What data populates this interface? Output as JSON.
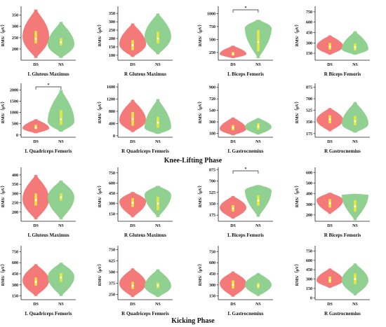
{
  "phases": [
    {
      "title": "Knee-Lifting Phase"
    },
    {
      "title": "Kicking Phase"
    }
  ],
  "colors": {
    "ds": "#f47a7a",
    "ns": "#90d090",
    "box": "#e8e840",
    "median": "#fffff0",
    "axis": "#222222"
  },
  "chart_data": [
    {
      "type": "violin",
      "title": "L Gluteus Maximus",
      "ylabel": "RMS/（μV）",
      "categories": [
        "DS",
        "NS"
      ],
      "yticks": [
        200,
        250,
        300,
        350
      ],
      "ylim": [
        150,
        380
      ],
      "significance": "",
      "series": [
        {
          "name": "DS",
          "median": 245,
          "q1": 225,
          "q3": 280,
          "min": 160,
          "max": 375,
          "widest_at": 255
        },
        {
          "name": "NS",
          "median": 230,
          "q1": 215,
          "q3": 248,
          "min": 160,
          "max": 320,
          "widest_at": 220
        }
      ]
    },
    {
      "type": "violin",
      "title": "R Gluteus Maximus",
      "ylabel": "RMS/（μV）",
      "categories": [
        "DS",
        "NS"
      ],
      "yticks": [
        100,
        150,
        200,
        250,
        300,
        350
      ],
      "ylim": [
        70,
        380
      ],
      "significance": "",
      "series": [
        {
          "name": "DS",
          "median": 160,
          "q1": 130,
          "q3": 190,
          "min": 90,
          "max": 290,
          "widest_at": 165
        },
        {
          "name": "NS",
          "median": 200,
          "q1": 170,
          "q3": 240,
          "min": 105,
          "max": 350,
          "widest_at": 210
        }
      ]
    },
    {
      "type": "violin",
      "title": "L Biceps Femoris",
      "ylabel": "RMS/（μV）",
      "categories": [
        "DS",
        "NS"
      ],
      "yticks": [
        250,
        500,
        750,
        1000
      ],
      "ylim": [
        100,
        1100
      ],
      "significance": "*",
      "series": [
        {
          "name": "DS",
          "median": 220,
          "q1": 190,
          "q3": 260,
          "min": 140,
          "max": 380,
          "widest_at": 220
        },
        {
          "name": "NS",
          "median": 450,
          "q1": 270,
          "q3": 680,
          "min": 140,
          "max": 880,
          "widest_at": 720
        }
      ]
    },
    {
      "type": "violin",
      "title": "R Biceps Femoris",
      "ylabel": "RMS/（μV）",
      "categories": [
        "DS",
        "NS"
      ],
      "yticks": [
        150,
        300,
        450,
        600,
        750
      ],
      "ylim": [
        50,
        800
      ],
      "significance": "",
      "series": [
        {
          "name": "DS",
          "median": 245,
          "q1": 205,
          "q3": 300,
          "min": 130,
          "max": 410,
          "widest_at": 250
        },
        {
          "name": "NS",
          "median": 240,
          "q1": 190,
          "q3": 290,
          "min": 130,
          "max": 470,
          "widest_at": 210
        }
      ]
    },
    {
      "type": "violin",
      "title": "L Quadriceps Femoris",
      "ylabel": "RMS/（μV）",
      "categories": [
        "DS",
        "NS"
      ],
      "yticks": [
        0,
        500,
        1000,
        1500,
        2000
      ],
      "ylim": [
        -100,
        2200
      ],
      "significance": "*",
      "series": [
        {
          "name": "DS",
          "median": 330,
          "q1": 260,
          "q3": 450,
          "min": 80,
          "max": 700,
          "widest_at": 300
        },
        {
          "name": "NS",
          "median": 700,
          "q1": 450,
          "q3": 1100,
          "min": 150,
          "max": 2000,
          "widest_at": 600
        }
      ]
    },
    {
      "type": "violin",
      "title": "R Quadriceps Femoris",
      "ylabel": "RMS/（μV）",
      "categories": [
        "DS",
        "NS"
      ],
      "yticks": [
        0,
        400,
        800,
        1200,
        1600
      ],
      "ylim": [
        -50,
        1650
      ],
      "significance": "",
      "series": [
        {
          "name": "DS",
          "median": 550,
          "q1": 330,
          "q3": 780,
          "min": 120,
          "max": 1180,
          "widest_at": 500
        },
        {
          "name": "NS",
          "median": 430,
          "q1": 260,
          "q3": 620,
          "min": 60,
          "max": 1200,
          "widest_at": 260
        }
      ]
    },
    {
      "type": "violin",
      "title": "L Gastrocnemius",
      "ylabel": "RMS/（μV）",
      "categories": [
        "DS",
        "NS"
      ],
      "yticks": [
        180,
        360,
        540,
        720,
        900
      ],
      "ylim": [
        120,
        930
      ],
      "significance": "",
      "series": [
        {
          "name": "DS",
          "median": 270,
          "q1": 230,
          "q3": 310,
          "min": 150,
          "max": 430,
          "widest_at": 250
        },
        {
          "name": "NS",
          "median": 290,
          "q1": 240,
          "q3": 340,
          "min": 160,
          "max": 420,
          "widest_at": 280
        }
      ]
    },
    {
      "type": "violin",
      "title": "R Gastrocnemius",
      "ylabel": "RMS/（μV）",
      "categories": [
        "DS",
        "NS"
      ],
      "yticks": [
        175,
        350,
        525,
        700,
        875
      ],
      "ylim": [
        120,
        900
      ],
      "significance": "",
      "series": [
        {
          "name": "DS",
          "median": 390,
          "q1": 330,
          "q3": 450,
          "min": 210,
          "max": 560,
          "widest_at": 380
        },
        {
          "name": "NS",
          "median": 360,
          "q1": 300,
          "q3": 440,
          "min": 190,
          "max": 650,
          "widest_at": 320
        }
      ]
    },
    {
      "type": "violin",
      "title": "L Gluteus Maximus",
      "ylabel": "RMS/（μV）",
      "categories": [
        "DS",
        "NS"
      ],
      "yticks": [
        200,
        250,
        300,
        350,
        400
      ],
      "ylim": [
        150,
        430
      ],
      "significance": "",
      "series": [
        {
          "name": "DS",
          "median": 265,
          "q1": 235,
          "q3": 300,
          "min": 160,
          "max": 400,
          "widest_at": 270
        },
        {
          "name": "NS",
          "median": 280,
          "q1": 262,
          "q3": 300,
          "min": 160,
          "max": 370,
          "widest_at": 280
        }
      ]
    },
    {
      "type": "violin",
      "title": "R Gluteus Maximus",
      "ylabel": "RMS/（μV）",
      "categories": [
        "DS",
        "NS"
      ],
      "yticks": [
        150,
        300,
        450,
        600,
        750
      ],
      "ylim": [
        40,
        800
      ],
      "significance": "",
      "series": [
        {
          "name": "DS",
          "median": 310,
          "q1": 250,
          "q3": 380,
          "min": 100,
          "max": 470,
          "widest_at": 330
        },
        {
          "name": "NS",
          "median": 300,
          "q1": 200,
          "q3": 400,
          "min": 100,
          "max": 560,
          "widest_at": 430
        }
      ]
    },
    {
      "type": "violin",
      "title": "L Biceps Femoris",
      "ylabel": "RMS/（μV）",
      "categories": [
        "DS",
        "NS"
      ],
      "yticks": [
        175,
        350,
        525,
        700,
        875
      ],
      "ylim": [
        80,
        880
      ],
      "significance": "*",
      "series": [
        {
          "name": "DS",
          "median": 280,
          "q1": 230,
          "q3": 330,
          "min": 120,
          "max": 470,
          "widest_at": 290
        },
        {
          "name": "NS",
          "median": 400,
          "q1": 320,
          "q3": 480,
          "min": 150,
          "max": 640,
          "widest_at": 560
        }
      ]
    },
    {
      "type": "violin",
      "title": "R Biceps Femoris",
      "ylabel": "RMS/（μV）",
      "categories": [
        "DS",
        "NS"
      ],
      "yticks": [
        200,
        300,
        400,
        500,
        600
      ],
      "ylim": [
        140,
        630
      ],
      "significance": "",
      "series": [
        {
          "name": "DS",
          "median": 310,
          "q1": 270,
          "q3": 350,
          "min": 210,
          "max": 410,
          "widest_at": 340
        },
        {
          "name": "NS",
          "median": 280,
          "q1": 230,
          "q3": 340,
          "min": 150,
          "max": 400,
          "widest_at": 390
        }
      ]
    },
    {
      "type": "violin",
      "title": "L Quadriceps Femoris",
      "ylabel": "RMS/（μV）",
      "categories": [
        "DS",
        "NS"
      ],
      "yticks": [
        150,
        300,
        450,
        600,
        750
      ],
      "ylim": [
        100,
        800
      ],
      "significance": "",
      "series": [
        {
          "name": "DS",
          "median": 340,
          "q1": 290,
          "q3": 400,
          "min": 150,
          "max": 580,
          "widest_at": 360
        },
        {
          "name": "NS",
          "median": 400,
          "q1": 340,
          "q3": 460,
          "min": 150,
          "max": 600,
          "widest_at": 410
        }
      ]
    },
    {
      "type": "violin",
      "title": "R Quadriceps Femoris",
      "ylabel": "RMS/（μV）",
      "categories": [
        "DS",
        "NS"
      ],
      "yticks": [
        250,
        375,
        500,
        625,
        750
      ],
      "ylim": [
        190,
        770
      ],
      "significance": "",
      "series": [
        {
          "name": "DS",
          "median": 345,
          "q1": 310,
          "q3": 390,
          "min": 220,
          "max": 540,
          "widest_at": 370
        },
        {
          "name": "NS",
          "median": 350,
          "q1": 320,
          "q3": 380,
          "min": 220,
          "max": 530,
          "widest_at": 340
        }
      ]
    },
    {
      "type": "violin",
      "title": "L Gastrocnemius",
      "ylabel": "RMS/（μV）",
      "categories": [
        "DS",
        "NS"
      ],
      "yticks": [
        150,
        300,
        450,
        600,
        750
      ],
      "ylim": [
        100,
        800
      ],
      "significance": "",
      "series": [
        {
          "name": "DS",
          "median": 300,
          "q1": 250,
          "q3": 360,
          "min": 140,
          "max": 480,
          "widest_at": 320
        },
        {
          "name": "NS",
          "median": 290,
          "q1": 255,
          "q3": 325,
          "min": 150,
          "max": 460,
          "widest_at": 300
        }
      ]
    },
    {
      "type": "violin",
      "title": "R Gastrocnemius",
      "ylabel": "RMS/（μV）",
      "categories": [
        "DS",
        "NS"
      ],
      "yticks": [
        0,
        150,
        300,
        450,
        600,
        750
      ],
      "ylim": [
        -30,
        800
      ],
      "significance": "",
      "series": [
        {
          "name": "DS",
          "median": 280,
          "q1": 240,
          "q3": 340,
          "min": 160,
          "max": 470,
          "widest_at": 280
        },
        {
          "name": "NS",
          "median": 300,
          "q1": 220,
          "q3": 390,
          "min": 40,
          "max": 550,
          "widest_at": 280
        }
      ]
    }
  ]
}
